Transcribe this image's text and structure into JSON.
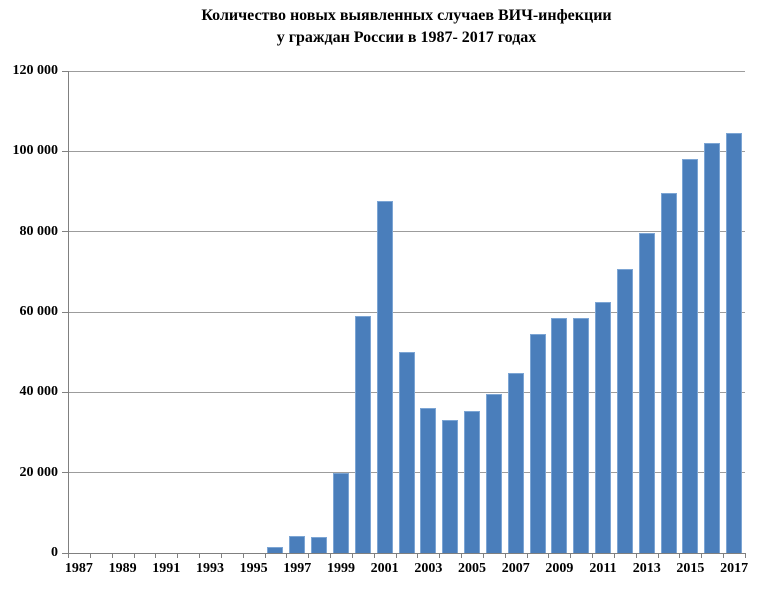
{
  "title": {
    "line1": "Количество новых выявленных случаев ВИЧ-инфекции",
    "line2": "у граждан России в 1987- 2017 годах"
  },
  "chart_data": {
    "type": "bar",
    "title": "Количество новых выявленных случаев ВИЧ-инфекции у граждан России в 1987- 2017 годах",
    "xlabel": "",
    "ylabel": "",
    "categories": [
      1987,
      1988,
      1989,
      1990,
      1991,
      1992,
      1993,
      1994,
      1995,
      1996,
      1997,
      1998,
      1999,
      2000,
      2001,
      2002,
      2003,
      2004,
      2005,
      2006,
      2007,
      2008,
      2009,
      2010,
      2011,
      2012,
      2013,
      2014,
      2015,
      2016,
      2017
    ],
    "values": [
      0,
      0,
      0,
      0,
      0,
      0,
      0,
      0,
      0,
      1500,
      4300,
      4000,
      19800,
      59000,
      87700,
      50000,
      36200,
      33200,
      35400,
      39600,
      44700,
      54600,
      58400,
      58600,
      62400,
      70700,
      79700,
      89600,
      98200,
      102000,
      104500
    ],
    "x_tick_labels": [
      "1987",
      "1989",
      "1991",
      "1993",
      "1995",
      "1997",
      "1999",
      "2001",
      "2003",
      "2005",
      "2007",
      "2009",
      "2011",
      "2013",
      "2015",
      "2017"
    ],
    "y_ticks": [
      0,
      20000,
      40000,
      60000,
      80000,
      100000,
      120000
    ],
    "y_tick_labels": [
      "0",
      "20 000",
      "40 000",
      "60 000",
      "80 000",
      "100 000",
      "120 000"
    ],
    "ylim": [
      0,
      120000
    ],
    "grid": true,
    "legend": false,
    "colors": {
      "bar": "#4A7EBB",
      "bar_edge": "#7CA5D4",
      "grid": "#9C9C9C",
      "axis": "#808080",
      "text": "#000000",
      "background": "#FFFFFF"
    }
  }
}
